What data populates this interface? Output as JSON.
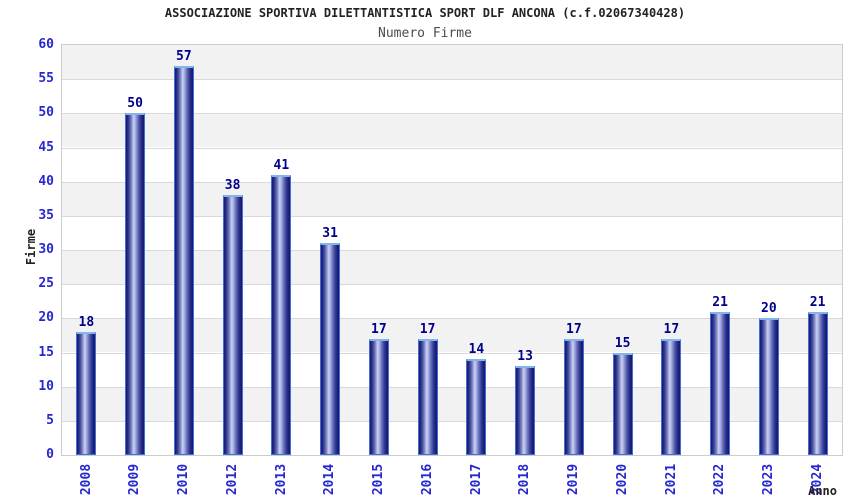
{
  "header": {
    "title": "ASSOCIAZIONE SPORTIVA DILETTANTISTICA SPORT DLF ANCONA (c.f.02067340428)",
    "subtitle": "Numero Firme"
  },
  "chart_data": {
    "type": "bar",
    "title": "ASSOCIAZIONE SPORTIVA DILETTANTISTICA SPORT DLF ANCONA (c.f.02067340428)",
    "subtitle": "Numero Firme",
    "categories": [
      "2008",
      "2009",
      "2010",
      "2012",
      "2013",
      "2014",
      "2015",
      "2016",
      "2017",
      "2018",
      "2019",
      "2020",
      "2021",
      "2022",
      "2023",
      "2024"
    ],
    "values": [
      18,
      50,
      57,
      38,
      41,
      31,
      17,
      17,
      14,
      13,
      17,
      15,
      17,
      21,
      20,
      21
    ],
    "xlabel": "Anno",
    "ylabel": "Firme",
    "ylim": [
      0,
      60
    ],
    "ytick_step": 5,
    "yticks": [
      0,
      5,
      10,
      15,
      20,
      25,
      30,
      35,
      40,
      45,
      50,
      55,
      60
    ],
    "grid": true,
    "legend": false,
    "bar_value_labels": true,
    "colors": {
      "bar_edge_dark": "#171a6e",
      "bar_mid": "#8d96d2",
      "bar_highlight": "#c9cff2",
      "bar_outline": "#3f6fd8",
      "bar_cap": "#85b4ea",
      "value_label": "#00008b",
      "tick_label": "#2727cf",
      "band_gray": "#f2f2f2",
      "band_white": "#ffffff",
      "gridline": "#d9d9d9",
      "plot_border": "#cccccc",
      "title": "#222222",
      "subtitle": "#4d4d4d",
      "axis_title": "#222222"
    }
  }
}
